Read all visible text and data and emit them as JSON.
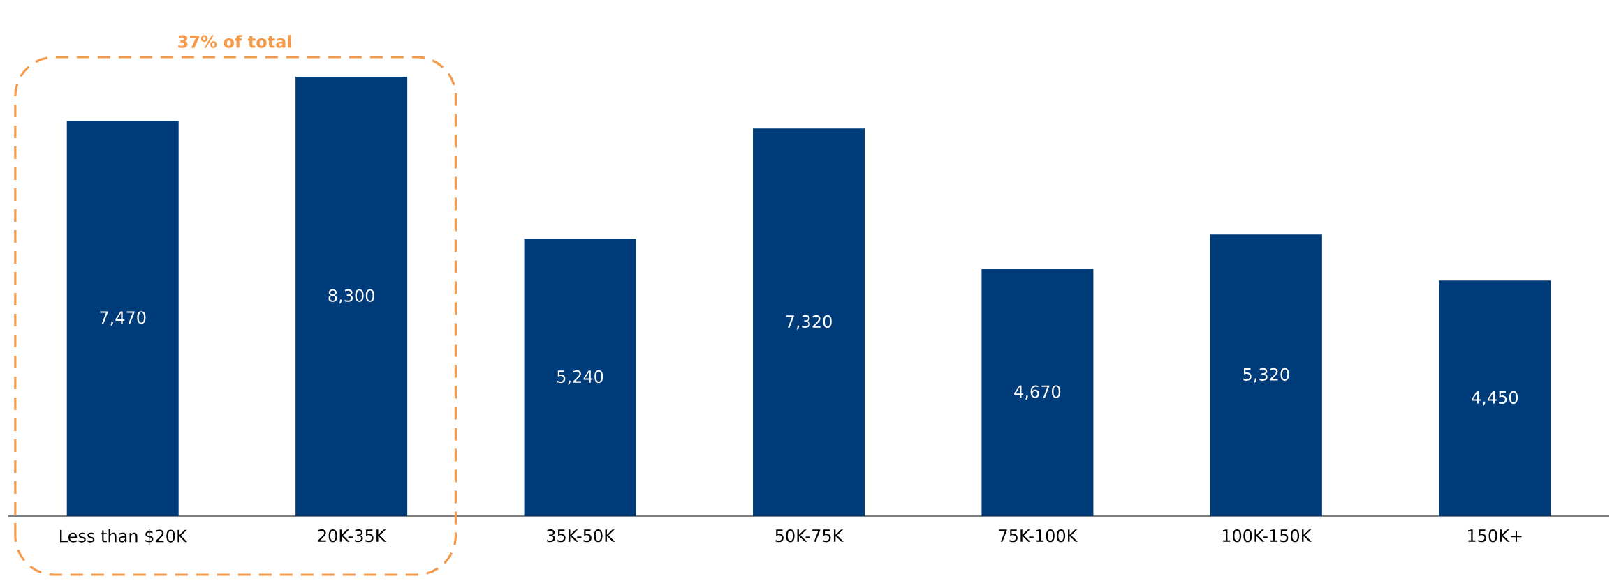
{
  "chart_data": {
    "type": "bar",
    "categories": [
      "Less than $20K",
      "20K-35K",
      "35K-50K",
      "50K-75K",
      "75K-100K",
      "100K-150K",
      "150K+"
    ],
    "values": [
      7470,
      8300,
      5240,
      7320,
      4670,
      5320,
      4450
    ],
    "color": "#003b7a",
    "value_labels": [
      "7,470",
      "8,300",
      "5,240",
      "7,320",
      "4,670",
      "5,320",
      "4,450"
    ],
    "annotations": [
      "37% of total"
    ]
  }
}
